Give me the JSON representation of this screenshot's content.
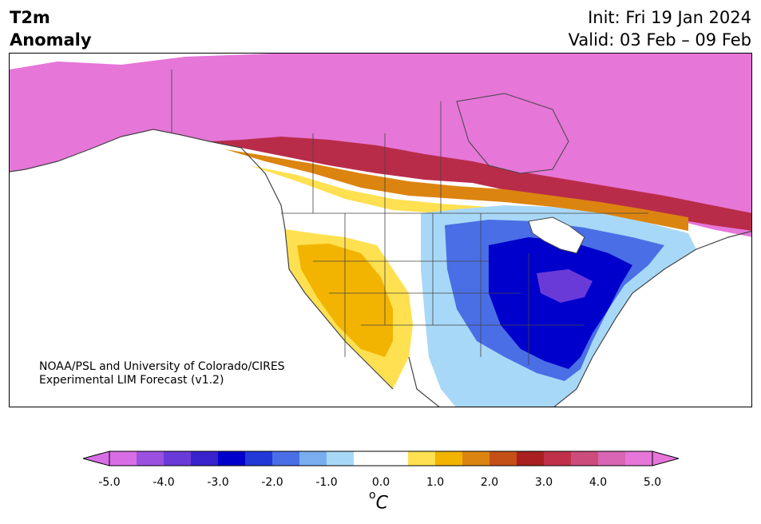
{
  "header": {
    "variable": "T2m",
    "field": "Anomaly",
    "init": "Init: Fri 19 Jan 2024",
    "valid": "Valid: 03 Feb – 09 Feb"
  },
  "map": {
    "region": "North America",
    "credit_line1": "NOAA/PSL and University of Colorado/CIRES",
    "credit_line2": "Experimental LIM Forecast (v1.2)"
  },
  "colorbar": {
    "unit_base": "C",
    "unit_sup": "o",
    "tick_labels": [
      "-5.0",
      "-4.0",
      "-3.0",
      "-2.0",
      "-1.0",
      "0.0",
      "1.0",
      "2.0",
      "3.0",
      "4.0",
      "5.0"
    ],
    "colors": [
      "#d86ee6",
      "#9b50e0",
      "#6a3ad8",
      "#3a22cc",
      "#0000cc",
      "#2238d8",
      "#4a6ee6",
      "#78aef0",
      "#a8d8f8",
      "#ffffff",
      "#ffffff",
      "#ffe050",
      "#f2b400",
      "#dc8410",
      "#c45018",
      "#a82020",
      "#c03048",
      "#cc4c7c",
      "#d866b4",
      "#e676d8"
    ]
  }
}
